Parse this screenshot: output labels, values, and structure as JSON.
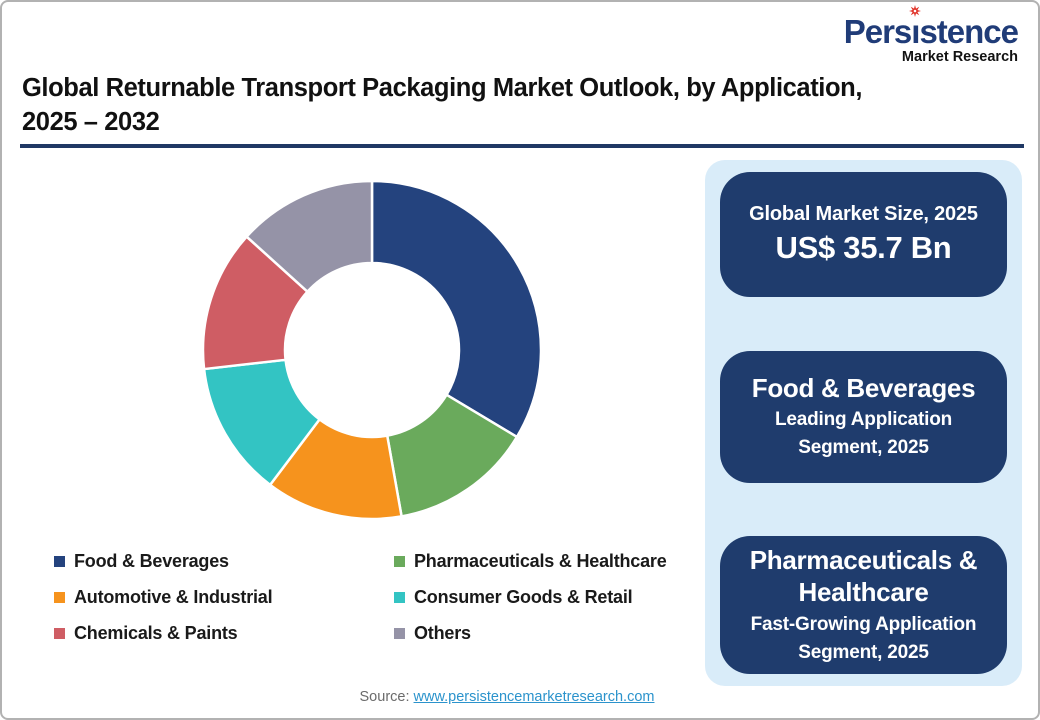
{
  "logo": {
    "part1": "Pers",
    "part2": "ı",
    "part3": "stence",
    "subtitle": "Market Research",
    "navy": "#203c78",
    "star_red": "#e03127"
  },
  "title": {
    "line1": "Global Returnable Transport Packaging Market Outlook, by Application,",
    "line2": "2025 – 2032"
  },
  "chart_data": {
    "type": "pie",
    "subtype": "donut",
    "title": "Global Returnable Transport Packaging Market Outlook, by Application, 2025 – 2032",
    "start_angle_deg": 0,
    "direction": "clockwise",
    "inner_radius_ratio": 0.52,
    "legend_position": "below",
    "data_labels": false,
    "unit": "% share (estimated from arc angles)",
    "segments": [
      {
        "label": "Food & Beverages",
        "value": 33.6,
        "color": "#24437e"
      },
      {
        "label": "Pharmaceuticals & Healthcare",
        "value": 13.6,
        "color": "#6aaa5c"
      },
      {
        "label": "Automotive & Industrial",
        "value": 13.1,
        "color": "#f6931d"
      },
      {
        "label": "Consumer Goods & Retail",
        "value": 12.9,
        "color": "#33c4c3"
      },
      {
        "label": "Chemicals & Paints",
        "value": 13.5,
        "color": "#cf5d64"
      },
      {
        "label": "Others",
        "value": 13.3,
        "color": "#9593a7"
      }
    ]
  },
  "cards": [
    {
      "line1": "Global Market Size, 2025",
      "line2": "US$ 35.7 Bn"
    },
    {
      "line1": "Food & Beverages",
      "line2": "Leading Application Segment, 2025"
    },
    {
      "line1": "Pharmaceuticals & Healthcare",
      "line2": "Fast-Growing Application Segment, 2025"
    }
  ],
  "source": {
    "label": "Source:",
    "url_text": "www.persistencemarketresearch.com"
  },
  "theme": {
    "card_navy": "#1f3c6d",
    "panel_blue": "#d9ecf9",
    "rule_navy": "#1f3864",
    "link_blue": "#2b93cc"
  }
}
